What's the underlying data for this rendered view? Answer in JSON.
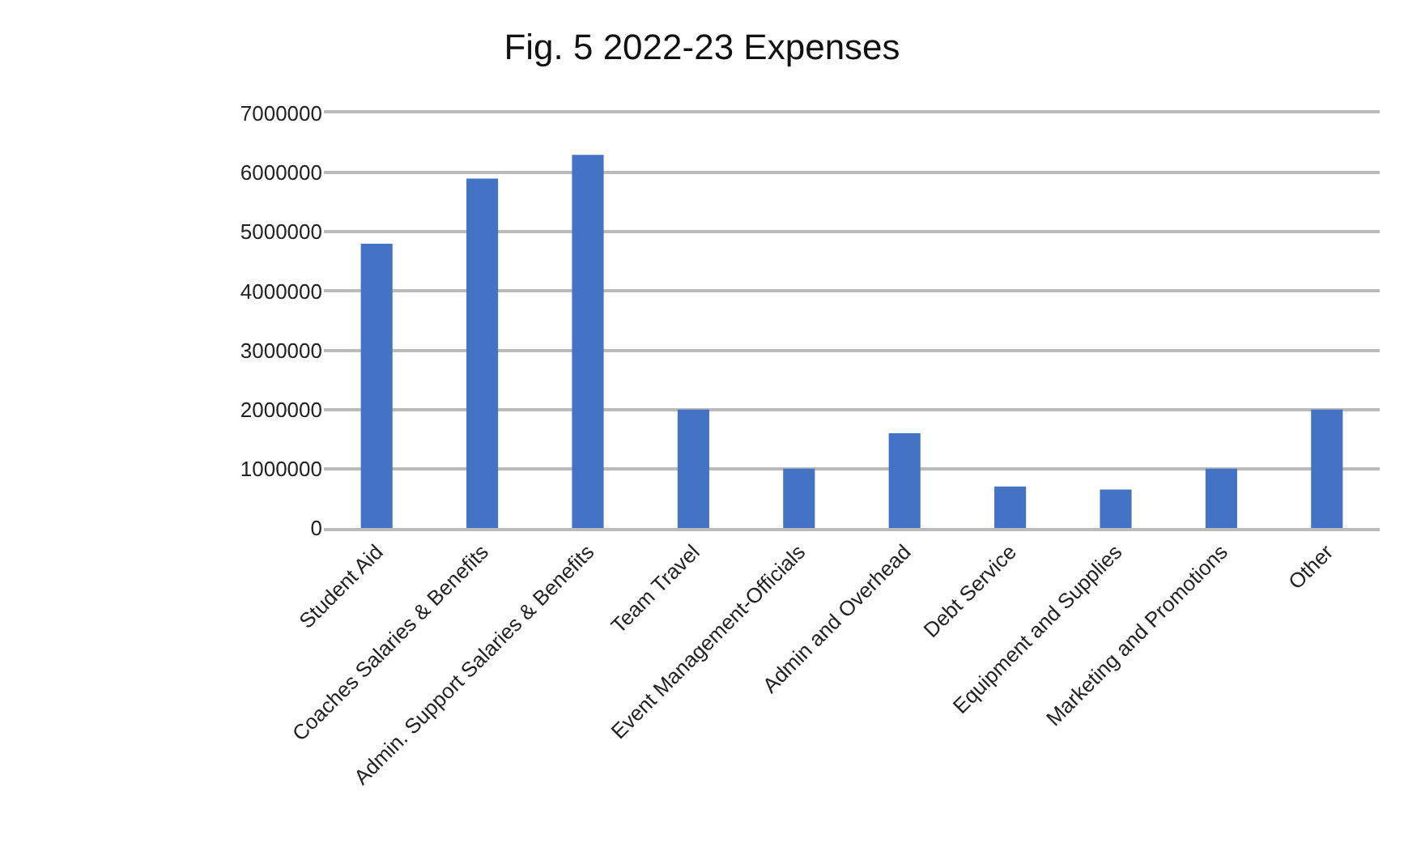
{
  "chart_data": {
    "type": "bar",
    "title": "Fig. 5 2022-23 Expenses",
    "categories": [
      "Student Aid",
      "Coaches Salaries & Benefits",
      "Admin. Support Salaries & Benefits",
      "Team Travel",
      "Event Management-Officials",
      "Admin and Overhead",
      "Debt Service",
      "Equipment and Supplies",
      "Marketing and Promotions",
      "Other"
    ],
    "values": [
      4800000,
      5900000,
      6300000,
      2000000,
      1000000,
      1600000,
      700000,
      650000,
      1000000,
      2000000
    ],
    "color": "#4472c4",
    "ylim": [
      0,
      7000000
    ],
    "yticks": [
      0,
      1000000,
      2000000,
      3000000,
      4000000,
      5000000,
      6000000,
      7000000
    ],
    "grid": true
  }
}
